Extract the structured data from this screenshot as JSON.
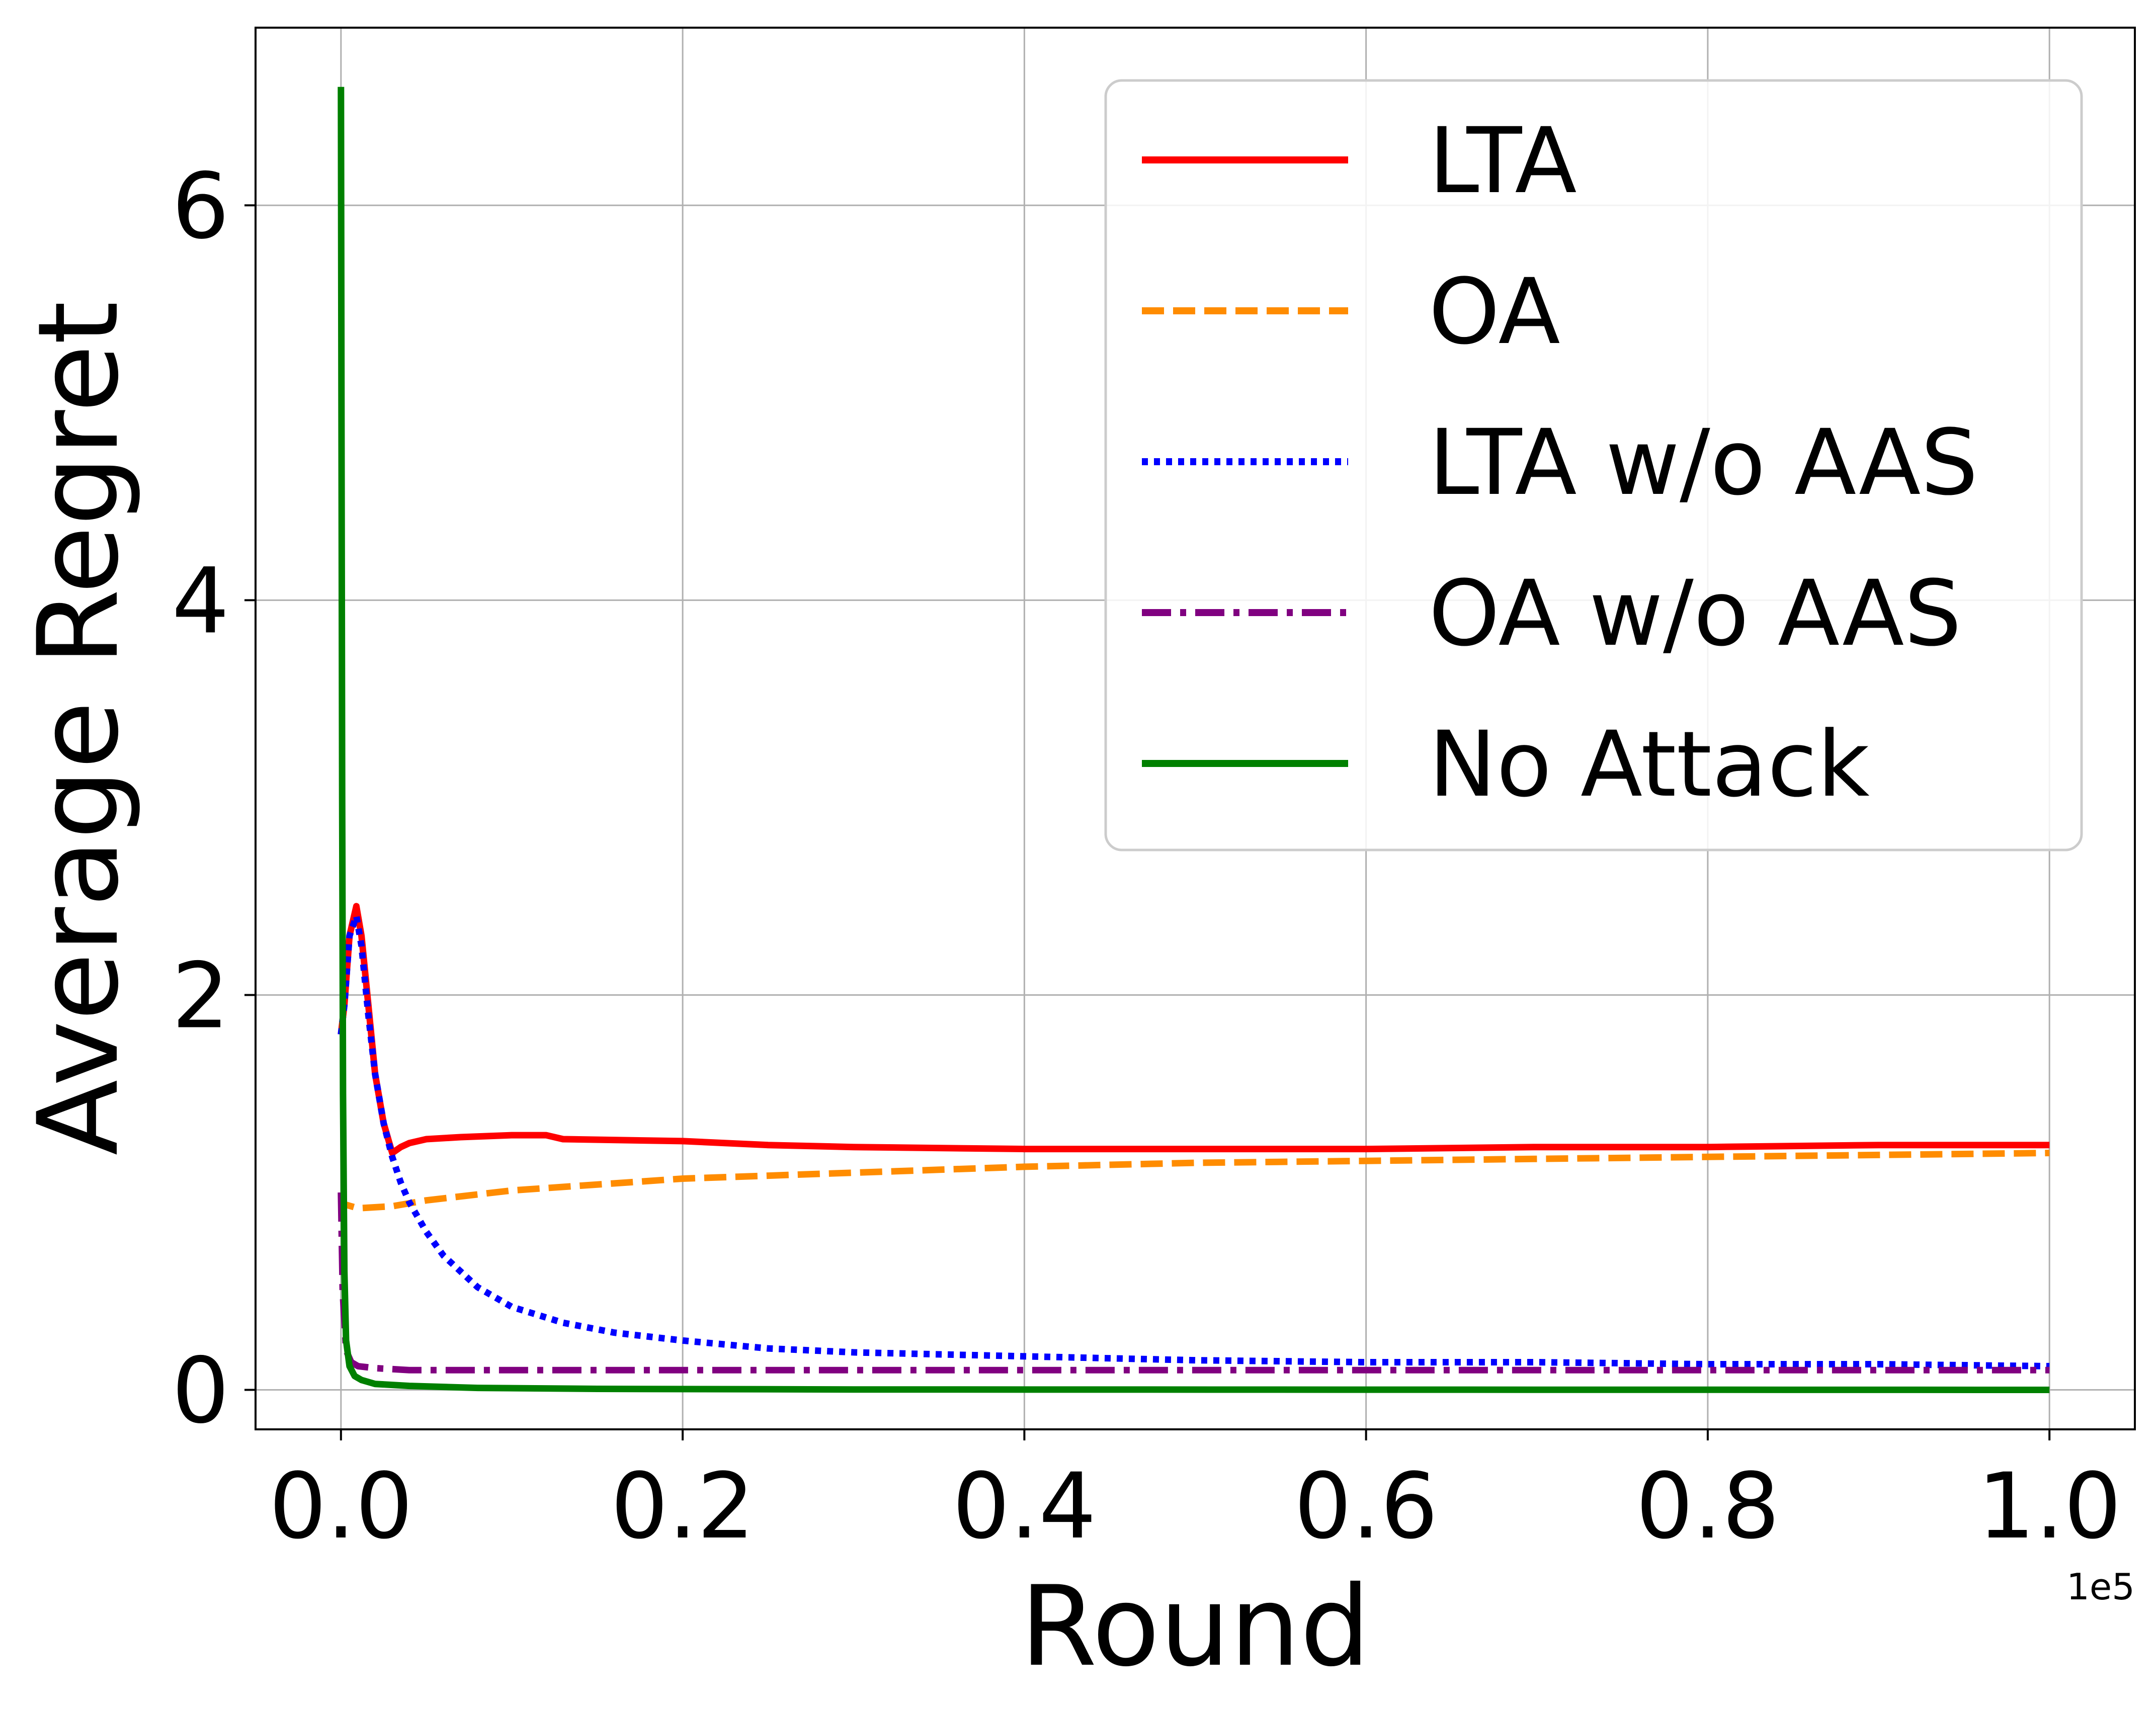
{
  "chart_data": {
    "type": "line",
    "title": "",
    "xlabel": "Round",
    "ylabel": "Average Regret",
    "x_offset_label": "1e5",
    "xlim": [
      -0.05,
      1.05
    ],
    "ylim": [
      -0.2,
      6.9
    ],
    "x_scale_factor": 100000,
    "xticks": [
      "0.0",
      "0.2",
      "0.4",
      "0.6",
      "0.8",
      "1.0"
    ],
    "xtick_values": [
      0.0,
      0.2,
      0.4,
      0.6,
      0.8,
      1.0
    ],
    "yticks": [
      "0",
      "2",
      "4",
      "6"
    ],
    "ytick_values": [
      0,
      2,
      4,
      6
    ],
    "grid": true,
    "legend_position": "top-right",
    "series": [
      {
        "name": "LTA",
        "color": "#ff0000",
        "dash": "solid",
        "x": [
          0.0,
          0.002,
          0.005,
          0.009,
          0.012,
          0.016,
          0.02,
          0.025,
          0.03,
          0.035,
          0.04,
          0.05,
          0.07,
          0.1,
          0.12,
          0.13,
          0.2,
          0.25,
          0.3,
          0.4,
          0.5,
          0.6,
          0.7,
          0.8,
          0.9,
          1.0
        ],
        "y": [
          1.8,
          1.95,
          2.3,
          2.45,
          2.3,
          1.95,
          1.6,
          1.35,
          1.2,
          1.23,
          1.25,
          1.27,
          1.28,
          1.29,
          1.29,
          1.27,
          1.26,
          1.24,
          1.23,
          1.22,
          1.22,
          1.22,
          1.23,
          1.23,
          1.24,
          1.24
        ]
      },
      {
        "name": "OA",
        "color": "#ff8c00",
        "dash": "dashed",
        "x": [
          0.0,
          0.002,
          0.01,
          0.03,
          0.05,
          0.1,
          0.2,
          0.3,
          0.4,
          0.5,
          0.6,
          0.7,
          0.8,
          0.9,
          1.0
        ],
        "y": [
          1.0,
          0.94,
          0.92,
          0.93,
          0.96,
          1.01,
          1.07,
          1.1,
          1.13,
          1.15,
          1.16,
          1.17,
          1.18,
          1.19,
          1.2
        ]
      },
      {
        "name": "LTA w/o AAS",
        "color": "#0000ff",
        "dash": "dotted",
        "x": [
          0.0,
          0.002,
          0.005,
          0.009,
          0.012,
          0.016,
          0.02,
          0.025,
          0.03,
          0.035,
          0.04,
          0.05,
          0.06,
          0.08,
          0.1,
          0.13,
          0.16,
          0.2,
          0.25,
          0.3,
          0.4,
          0.5,
          0.6,
          0.7,
          0.8,
          0.9,
          1.0
        ],
        "y": [
          1.8,
          1.95,
          2.3,
          2.4,
          2.25,
          1.9,
          1.6,
          1.35,
          1.18,
          1.05,
          0.95,
          0.8,
          0.68,
          0.52,
          0.42,
          0.34,
          0.29,
          0.25,
          0.21,
          0.19,
          0.17,
          0.15,
          0.14,
          0.14,
          0.13,
          0.13,
          0.12
        ]
      },
      {
        "name": "OA w/o AAS",
        "color": "#800080",
        "dash": "dashdot",
        "x": [
          0.0,
          0.001,
          0.003,
          0.006,
          0.01,
          0.02,
          0.04,
          0.08,
          0.15,
          0.3,
          0.5,
          0.7,
          1.0
        ],
        "y": [
          1.0,
          0.5,
          0.2,
          0.14,
          0.12,
          0.11,
          0.1,
          0.1,
          0.1,
          0.1,
          0.1,
          0.1,
          0.1
        ]
      },
      {
        "name": "No Attack",
        "color": "#008000",
        "dash": "solid",
        "x": [
          0.0,
          0.0003,
          0.0007,
          0.0012,
          0.002,
          0.003,
          0.005,
          0.008,
          0.012,
          0.02,
          0.04,
          0.08,
          0.15,
          0.3,
          0.6,
          1.0
        ],
        "y": [
          6.6,
          5.0,
          3.0,
          1.5,
          0.6,
          0.25,
          0.12,
          0.07,
          0.05,
          0.03,
          0.02,
          0.01,
          0.005,
          0.002,
          0.001,
          0.0
        ]
      }
    ]
  }
}
